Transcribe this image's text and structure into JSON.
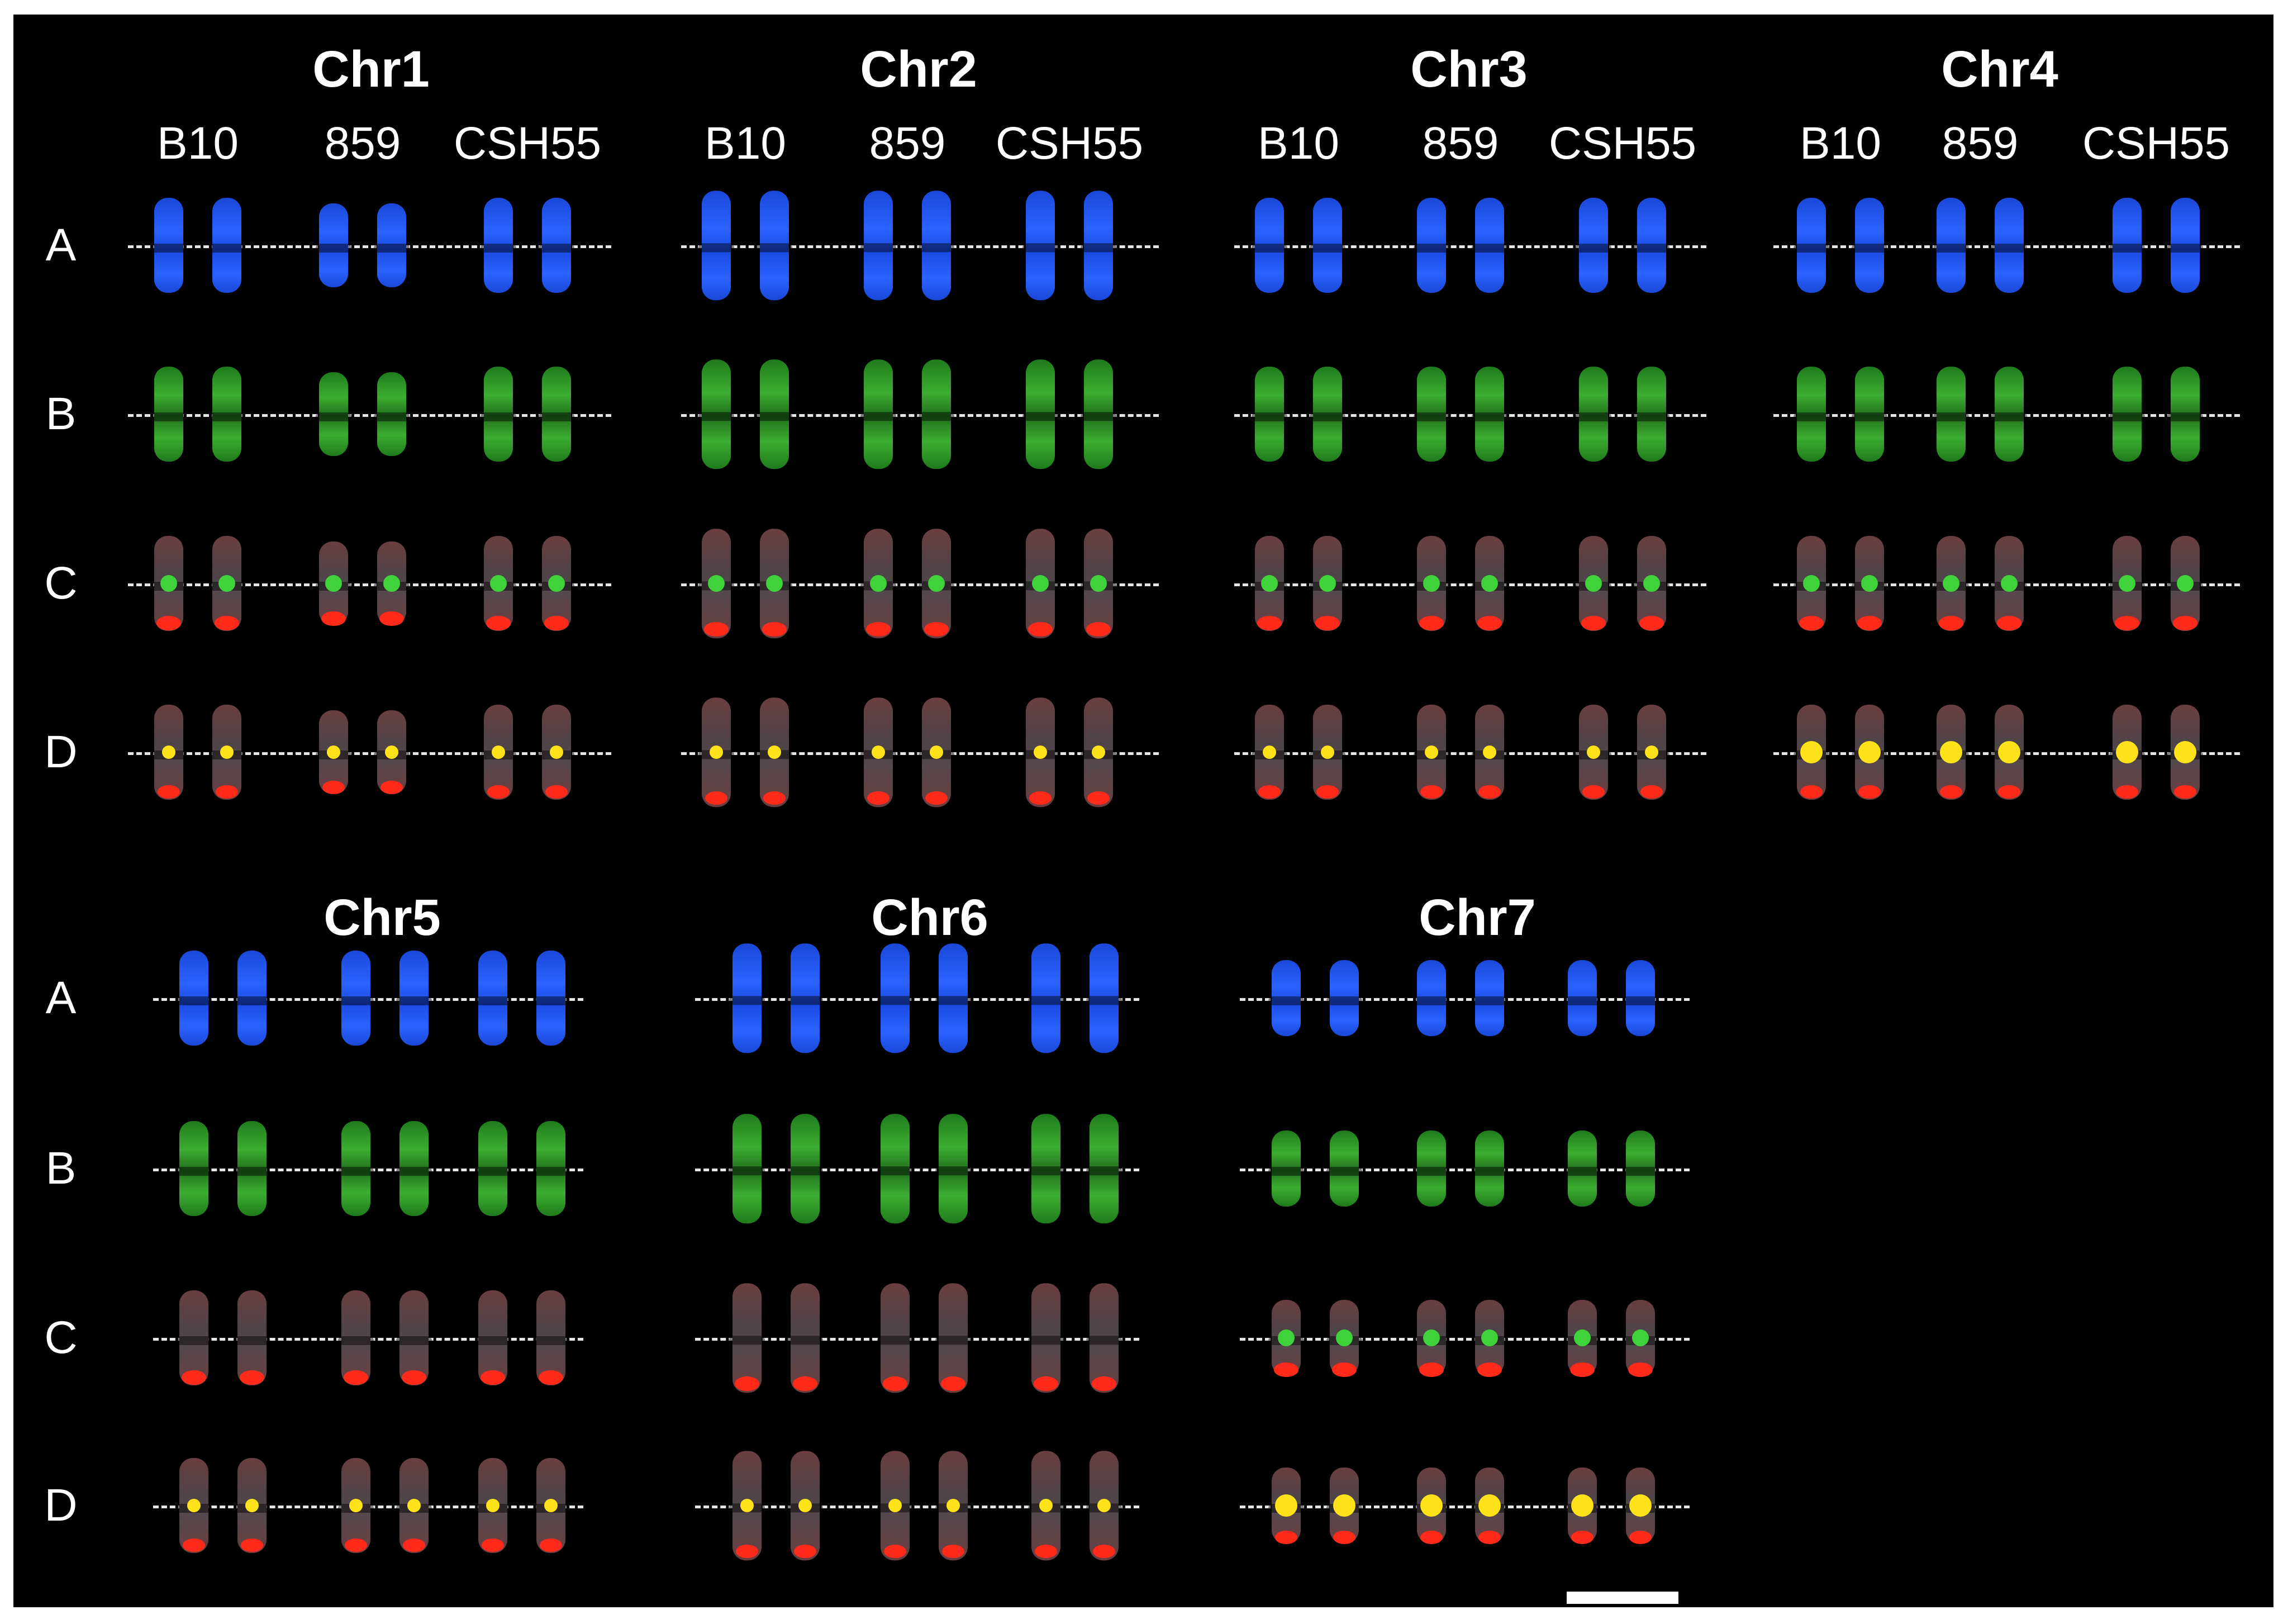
{
  "samples": [
    "B10",
    "859",
    "CSH55"
  ],
  "rows": [
    "A",
    "B",
    "C",
    "D"
  ],
  "chromosomes": [
    {
      "label": "Chr1"
    },
    {
      "label": "Chr2"
    },
    {
      "label": "Chr3"
    },
    {
      "label": "Chr4"
    },
    {
      "label": "Chr5"
    },
    {
      "label": "Chr6"
    },
    {
      "label": "Chr7"
    }
  ],
  "colors": {
    "background": "#000000",
    "dapi_blue": "#1e52e6",
    "fish_green": "#2f9a28",
    "probe_red": "#ff2a1a",
    "merged_yellow": "#ffe21a",
    "chromatin_grey": "#5a4a4e",
    "text": "#ffffff"
  }
}
